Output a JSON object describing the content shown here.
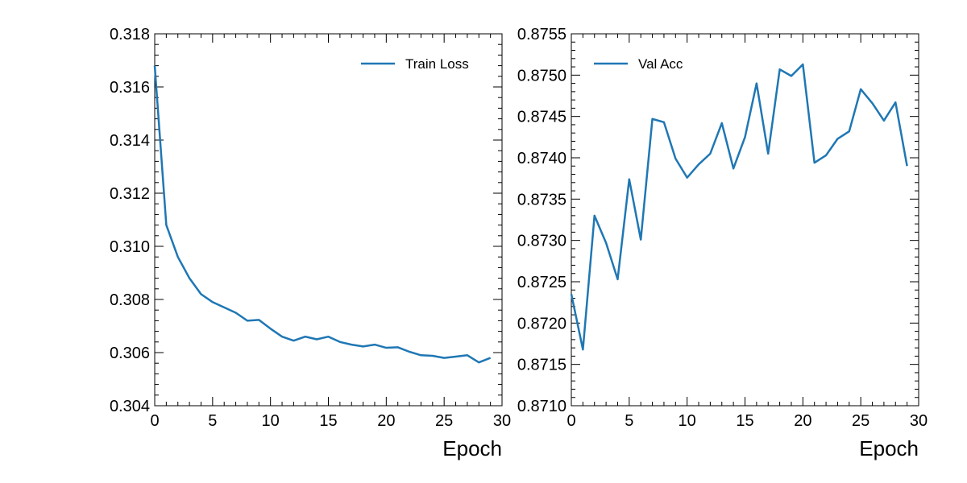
{
  "chart_data": [
    {
      "type": "line",
      "xlabel": "Epoch",
      "ylabel": "",
      "xlim": [
        0,
        30
      ],
      "ylim": [
        0.304,
        0.318
      ],
      "xticks": [
        0,
        5,
        10,
        15,
        20,
        25,
        30
      ],
      "xtick_labels": [
        "0",
        "5",
        "10",
        "15",
        "20",
        "25",
        "30"
      ],
      "yticks": [
        0.304,
        0.306,
        0.308,
        0.31,
        0.312,
        0.314,
        0.316,
        0.318
      ],
      "ytick_labels": [
        "0.304",
        "0.306",
        "0.308",
        "0.310",
        "0.312",
        "0.314",
        "0.316",
        "0.318"
      ],
      "legend_position": "top-right",
      "grid": false,
      "series": [
        {
          "name": "Train Loss",
          "color": "#1f77b4",
          "x": [
            0,
            1,
            2,
            3,
            4,
            5,
            6,
            7,
            8,
            9,
            10,
            11,
            12,
            13,
            14,
            15,
            16,
            17,
            18,
            19,
            20,
            21,
            22,
            23,
            24,
            25,
            26,
            27,
            28,
            29
          ],
          "values": [
            0.3168,
            0.3108,
            0.3096,
            0.3088,
            0.3082,
            0.3079,
            0.3077,
            0.3075,
            0.3072,
            0.30723,
            0.3069,
            0.3066,
            0.30645,
            0.3066,
            0.3065,
            0.3066,
            0.3064,
            0.3063,
            0.30623,
            0.3063,
            0.30618,
            0.3062,
            0.30603,
            0.3059,
            0.30588,
            0.3058,
            0.30585,
            0.3059,
            0.30563,
            0.3058
          ]
        }
      ]
    },
    {
      "type": "line",
      "xlabel": "Epoch",
      "ylabel": "",
      "xlim": [
        0,
        30
      ],
      "ylim": [
        0.871,
        0.8755
      ],
      "xticks": [
        0,
        5,
        10,
        15,
        20,
        25,
        30
      ],
      "xtick_labels": [
        "0",
        "5",
        "10",
        "15",
        "20",
        "25",
        "30"
      ],
      "yticks": [
        0.871,
        0.8715,
        0.872,
        0.8725,
        0.873,
        0.8735,
        0.874,
        0.8745,
        0.875,
        0.8755
      ],
      "ytick_labels": [
        "0.8710",
        "0.8715",
        "0.8720",
        "0.8725",
        "0.8730",
        "0.8735",
        "0.8740",
        "0.8745",
        "0.8750",
        "0.8755"
      ],
      "legend_position": "top-left",
      "grid": false,
      "series": [
        {
          "name": "Val Acc",
          "color": "#1f77b4",
          "x": [
            0,
            1,
            2,
            3,
            4,
            5,
            6,
            7,
            8,
            9,
            10,
            11,
            12,
            13,
            14,
            15,
            16,
            17,
            18,
            19,
            20,
            21,
            22,
            23,
            24,
            25,
            26,
            27,
            28,
            29
          ],
          "values": [
            0.87235,
            0.87168,
            0.8733,
            0.87297,
            0.87253,
            0.87374,
            0.87301,
            0.87447,
            0.87443,
            0.87399,
            0.87376,
            0.87392,
            0.87405,
            0.87442,
            0.87387,
            0.87425,
            0.8749,
            0.87405,
            0.87507,
            0.87499,
            0.87513,
            0.87394,
            0.87403,
            0.87423,
            0.87432,
            0.87483,
            0.87466,
            0.87445,
            0.87467,
            0.8739
          ]
        }
      ]
    }
  ]
}
